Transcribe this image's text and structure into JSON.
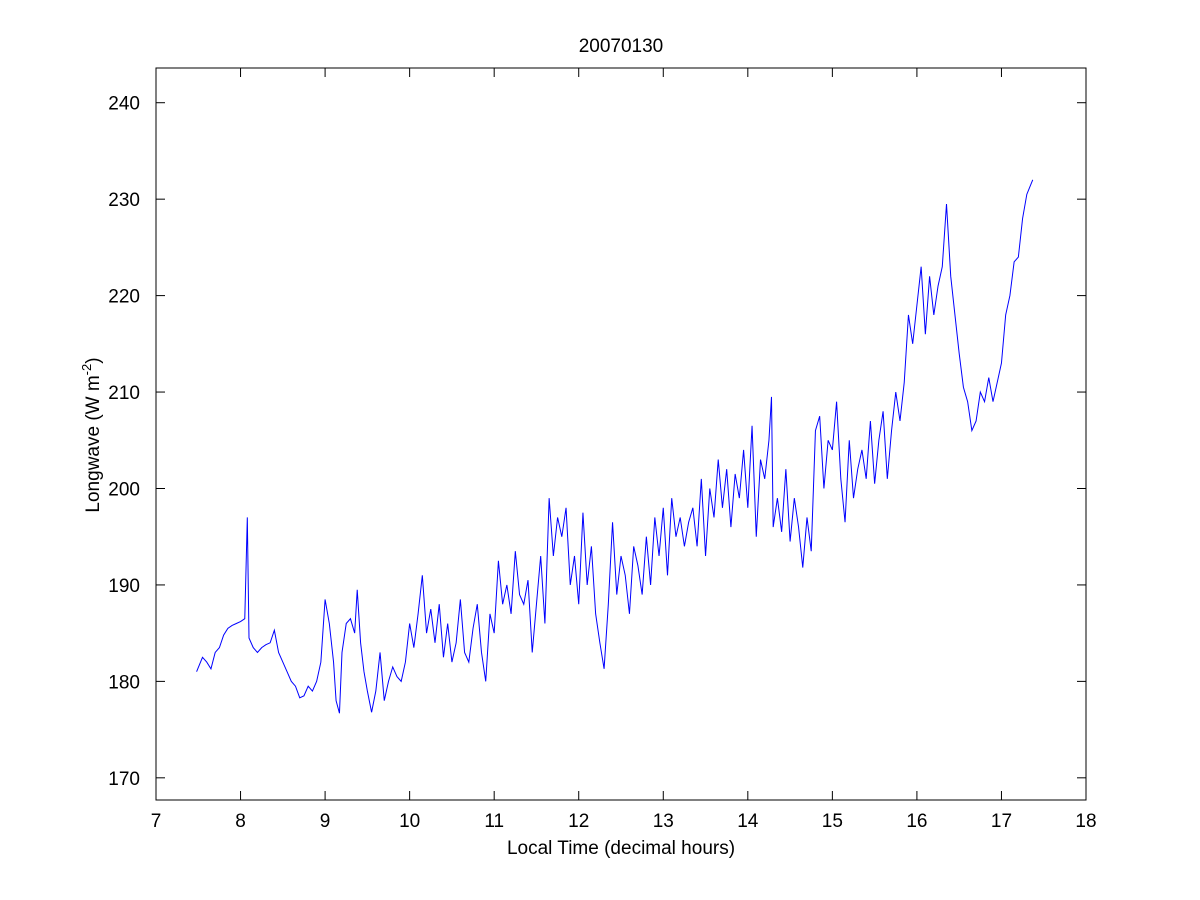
{
  "chart_data": {
    "type": "line",
    "title": "20070130",
    "xlabel": "Local Time (decimal hours)",
    "ylabel": {
      "text": "Longwave (W m",
      "superscript": "-2",
      "suffix": ")"
    },
    "xlim": [
      7,
      18
    ],
    "xticks": [
      7,
      8,
      9,
      10,
      11,
      12,
      13,
      14,
      15,
      16,
      17,
      18
    ],
    "ylim": [
      167.7,
      243.6
    ],
    "yticks": [
      170,
      180,
      190,
      200,
      210,
      220,
      230,
      240
    ],
    "grid": false,
    "series": [
      {
        "color": "#0000ff",
        "x": [
          7.48,
          7.55,
          7.6,
          7.65,
          7.7,
          7.75,
          7.8,
          7.85,
          7.9,
          7.95,
          8.0,
          8.05,
          8.08,
          8.1,
          8.15,
          8.2,
          8.25,
          8.3,
          8.35,
          8.4,
          8.45,
          8.5,
          8.55,
          8.6,
          8.65,
          8.7,
          8.75,
          8.8,
          8.85,
          8.9,
          8.95,
          9.0,
          9.05,
          9.1,
          9.13,
          9.17,
          9.2,
          9.25,
          9.3,
          9.35,
          9.38,
          9.42,
          9.46,
          9.5,
          9.55,
          9.6,
          9.65,
          9.7,
          9.75,
          9.8,
          9.85,
          9.9,
          9.95,
          10.0,
          10.05,
          10.1,
          10.15,
          10.2,
          10.25,
          10.3,
          10.35,
          10.4,
          10.45,
          10.5,
          10.55,
          10.6,
          10.65,
          10.7,
          10.75,
          10.8,
          10.85,
          10.9,
          10.95,
          11.0,
          11.05,
          11.1,
          11.15,
          11.2,
          11.25,
          11.3,
          11.35,
          11.4,
          11.45,
          11.5,
          11.55,
          11.6,
          11.65,
          11.7,
          11.75,
          11.8,
          11.85,
          11.9,
          11.95,
          12.0,
          12.05,
          12.1,
          12.15,
          12.2,
          12.25,
          12.3,
          12.35,
          12.4,
          12.45,
          12.5,
          12.55,
          12.6,
          12.65,
          12.7,
          12.75,
          12.8,
          12.85,
          12.9,
          12.95,
          13.0,
          13.05,
          13.1,
          13.15,
          13.2,
          13.25,
          13.3,
          13.35,
          13.4,
          13.45,
          13.5,
          13.55,
          13.6,
          13.65,
          13.7,
          13.75,
          13.8,
          13.85,
          13.9,
          13.95,
          14.0,
          14.05,
          14.1,
          14.15,
          14.2,
          14.25,
          14.28,
          14.3,
          14.35,
          14.4,
          14.45,
          14.5,
          14.55,
          14.6,
          14.65,
          14.7,
          14.75,
          14.8,
          14.85,
          14.9,
          14.95,
          15.0,
          15.05,
          15.1,
          15.15,
          15.2,
          15.25,
          15.3,
          15.35,
          15.4,
          15.45,
          15.5,
          15.55,
          15.6,
          15.65,
          15.7,
          15.75,
          15.8,
          15.85,
          15.9,
          15.95,
          16.0,
          16.05,
          16.1,
          16.15,
          16.2,
          16.25,
          16.3,
          16.35,
          16.4,
          16.45,
          16.5,
          16.55,
          16.6,
          16.65,
          16.7,
          16.75,
          16.8,
          16.85,
          16.9,
          16.95,
          17.0,
          17.05,
          17.1,
          17.15,
          17.2,
          17.25,
          17.3,
          17.37
        ],
        "values": [
          181,
          182.5,
          182,
          181.3,
          183,
          183.5,
          184.8,
          185.5,
          185.8,
          186,
          186.2,
          186.5,
          197,
          184.5,
          183.5,
          183,
          183.5,
          183.8,
          184,
          185.3,
          183,
          182,
          181,
          180,
          179.5,
          178.3,
          178.5,
          179.5,
          179,
          180,
          182,
          188.5,
          186,
          182,
          178,
          176.7,
          183,
          186,
          186.5,
          185,
          189.5,
          184,
          181,
          179,
          176.8,
          179,
          183,
          178,
          180,
          181.5,
          180.5,
          180,
          182,
          186,
          183.5,
          187,
          191,
          185,
          187.5,
          184,
          188,
          182.5,
          186,
          182,
          184,
          188.5,
          183,
          182,
          185.5,
          188,
          183,
          180,
          187,
          185,
          192.5,
          188,
          190,
          187,
          193.5,
          189,
          188,
          190.5,
          183,
          188,
          193,
          186,
          199,
          193,
          197,
          195,
          198,
          190,
          193,
          188,
          197.5,
          190,
          194,
          187,
          184,
          181.3,
          188,
          196.5,
          189,
          193,
          191,
          187,
          194,
          192,
          189,
          195,
          190,
          197,
          193,
          198,
          191,
          199,
          195,
          197,
          194,
          196.5,
          198,
          194,
          201,
          193,
          200,
          197,
          203,
          198,
          202,
          196,
          201.5,
          199,
          204,
          198,
          206.5,
          195,
          203,
          201,
          205,
          209.5,
          196,
          199,
          195.5,
          202,
          194.5,
          199,
          196,
          191.8,
          197,
          193.5,
          206,
          207.5,
          200,
          205,
          204,
          209,
          201,
          196.5,
          205,
          199,
          202,
          204,
          201,
          207,
          200.5,
          205,
          208,
          201,
          206,
          210,
          207,
          211,
          218,
          215,
          219,
          223,
          216,
          222,
          218,
          221,
          223,
          229.5,
          222,
          218,
          214,
          210.5,
          209,
          206,
          207,
          210,
          209,
          211.5,
          209,
          211,
          213,
          218,
          220,
          223.5,
          224,
          228,
          230.5,
          232
        ]
      }
    ]
  }
}
